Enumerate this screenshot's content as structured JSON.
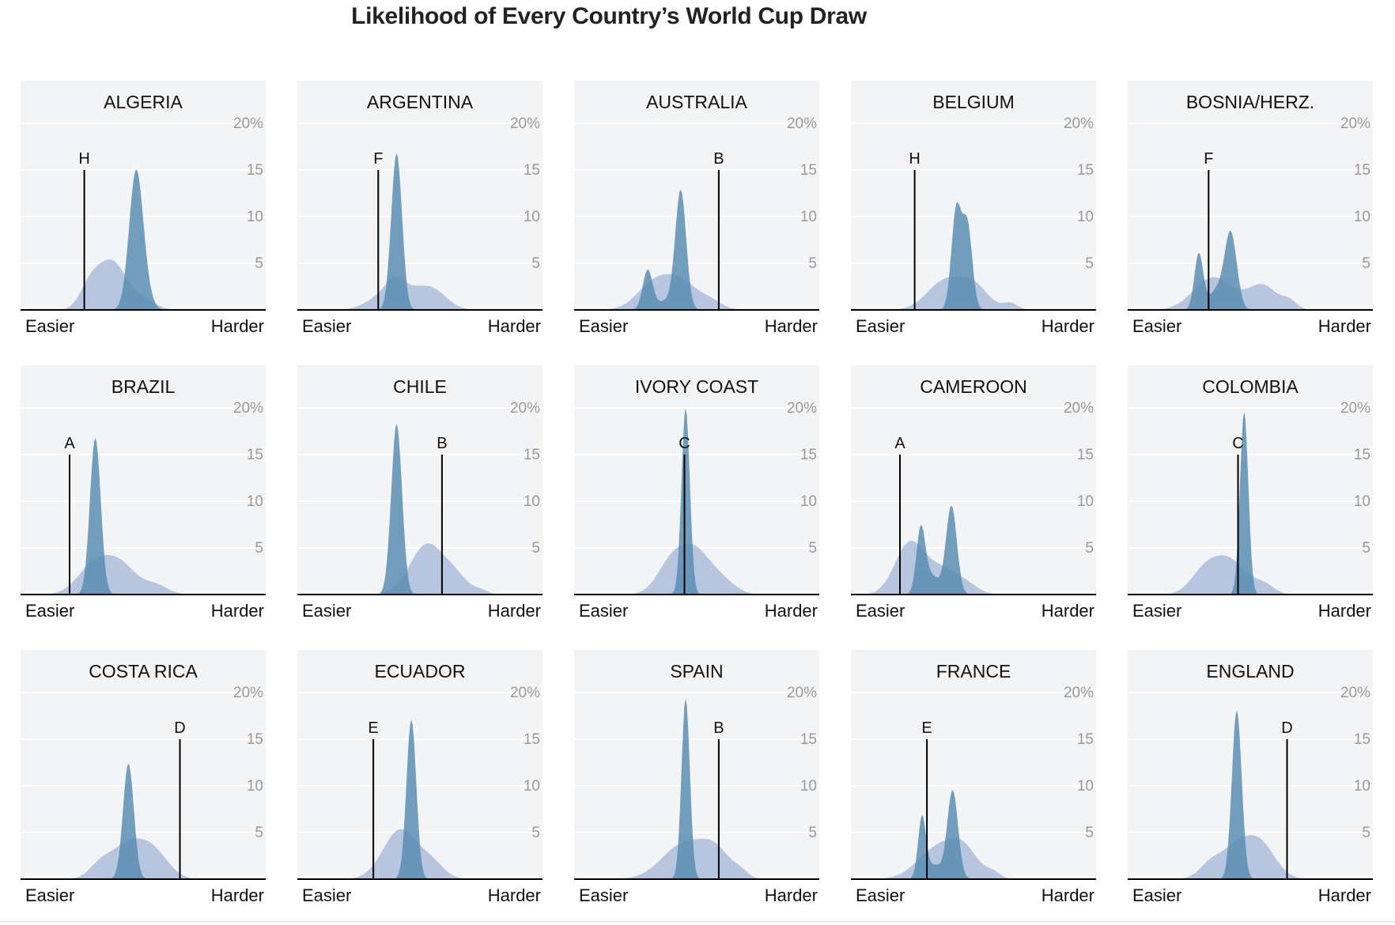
{
  "title": "Likelihood of Every Country’s World Cup Draw",
  "colors": {
    "panel_bg": "#f3f4f6",
    "grid": "#ffffff",
    "wide": "#b0c0dd",
    "narrow": "#5b8db3",
    "axis": "#000000",
    "tick_text": "#999999"
  },
  "chart_data": {
    "type": "area",
    "y_unit": "%",
    "ylim": [
      0,
      20
    ],
    "yticks": [
      "20%",
      "15",
      "10",
      "5"
    ],
    "x_labels": {
      "left": "Easier",
      "right": "Harder"
    },
    "panels": [
      {
        "country": "ALGERIA",
        "group": "H",
        "marker": 0.26,
        "wide": [
          [
            0.37,
            5.2,
            0.06
          ],
          [
            0.28,
            2.0,
            0.04
          ],
          [
            0.5,
            1.0,
            0.05
          ]
        ],
        "narrow": [
          [
            0.47,
            13.8,
            0.028
          ],
          [
            0.5,
            2.0,
            0.03
          ]
        ]
      },
      {
        "country": "ARGENTINA",
        "group": "F",
        "marker": 0.33,
        "wide": [
          [
            0.4,
            2.6,
            0.08
          ],
          [
            0.55,
            2.0,
            0.06
          ],
          [
            0.4,
            1.0,
            0.03
          ]
        ],
        "narrow": [
          [
            0.405,
            16.8,
            0.022
          ]
        ]
      },
      {
        "country": "AUSTRALIA",
        "group": "B",
        "marker": 0.59,
        "wide": [
          [
            0.33,
            3.0,
            0.07
          ],
          [
            0.44,
            2.5,
            0.06
          ],
          [
            0.55,
            1.0,
            0.05
          ]
        ],
        "narrow": [
          [
            0.3,
            4.2,
            0.02
          ],
          [
            0.435,
            12.5,
            0.022
          ],
          [
            0.38,
            1.0,
            0.04
          ]
        ]
      },
      {
        "country": "BELGIUM",
        "group": "H",
        "marker": 0.26,
        "wide": [
          [
            0.38,
            3.0,
            0.07
          ],
          [
            0.5,
            2.5,
            0.06
          ],
          [
            0.65,
            0.7,
            0.03
          ]
        ],
        "narrow": [
          [
            0.43,
            10.7,
            0.02
          ],
          [
            0.475,
            9.0,
            0.02
          ]
        ]
      },
      {
        "country": "BOSNIA/HERZ.",
        "group": "F",
        "marker": 0.33,
        "wide": [
          [
            0.35,
            3.5,
            0.08
          ],
          [
            0.55,
            2.6,
            0.06
          ],
          [
            0.66,
            0.8,
            0.03
          ]
        ],
        "narrow": [
          [
            0.29,
            6.0,
            0.018
          ],
          [
            0.42,
            8.2,
            0.025
          ],
          [
            0.36,
            2.0,
            0.03
          ]
        ]
      },
      {
        "country": "BRAZIL",
        "group": "A",
        "marker": 0.2,
        "wide": [
          [
            0.31,
            3.5,
            0.07
          ],
          [
            0.42,
            2.5,
            0.06
          ],
          [
            0.55,
            1.0,
            0.05
          ]
        ],
        "narrow": [
          [
            0.305,
            16.8,
            0.022
          ]
        ]
      },
      {
        "country": "CHILE",
        "group": "B",
        "marker": 0.59,
        "wide": [
          [
            0.53,
            5.4,
            0.07
          ],
          [
            0.65,
            1.5,
            0.05
          ],
          [
            0.75,
            0.4,
            0.03
          ]
        ],
        "narrow": [
          [
            0.405,
            18.3,
            0.022
          ]
        ]
      },
      {
        "country": "IVORY COAST",
        "group": "C",
        "marker": 0.45,
        "wide": [
          [
            0.48,
            5.2,
            0.08
          ],
          [
            0.38,
            1.5,
            0.05
          ],
          [
            0.62,
            0.7,
            0.05
          ]
        ],
        "narrow": [
          [
            0.455,
            20.0,
            0.017
          ]
        ]
      },
      {
        "country": "CAMEROON",
        "group": "A",
        "marker": 0.2,
        "wide": [
          [
            0.24,
            5.5,
            0.06
          ],
          [
            0.37,
            2.5,
            0.06
          ],
          [
            0.47,
            1.0,
            0.05
          ]
        ],
        "narrow": [
          [
            0.285,
            6.8,
            0.018
          ],
          [
            0.41,
            9.5,
            0.022
          ],
          [
            0.33,
            2.0,
            0.03
          ]
        ]
      },
      {
        "country": "COLOMBIA",
        "group": "C",
        "marker": 0.45,
        "wide": [
          [
            0.4,
            4.0,
            0.08
          ],
          [
            0.3,
            1.2,
            0.05
          ],
          [
            0.56,
            0.8,
            0.04
          ]
        ],
        "narrow": [
          [
            0.475,
            19.6,
            0.017
          ]
        ]
      },
      {
        "country": "COSTA RICA",
        "group": "D",
        "marker": 0.65,
        "wide": [
          [
            0.44,
            3.8,
            0.08
          ],
          [
            0.55,
            2.0,
            0.06
          ],
          [
            0.32,
            0.9,
            0.04
          ]
        ],
        "narrow": [
          [
            0.44,
            12.4,
            0.022
          ]
        ]
      },
      {
        "country": "ECUADOR",
        "group": "E",
        "marker": 0.31,
        "wide": [
          [
            0.42,
            5.3,
            0.07
          ],
          [
            0.55,
            1.5,
            0.05
          ]
        ],
        "narrow": [
          [
            0.465,
            17.1,
            0.02
          ]
        ]
      },
      {
        "country": "SPAIN",
        "group": "B",
        "marker": 0.59,
        "wide": [
          [
            0.45,
            3.8,
            0.09
          ],
          [
            0.58,
            2.5,
            0.06
          ],
          [
            0.68,
            0.6,
            0.03
          ]
        ],
        "narrow": [
          [
            0.455,
            19.4,
            0.017
          ]
        ]
      },
      {
        "country": "FRANCE",
        "group": "E",
        "marker": 0.31,
        "wide": [
          [
            0.35,
            3.2,
            0.08
          ],
          [
            0.46,
            2.8,
            0.06
          ],
          [
            0.58,
            0.6,
            0.03
          ]
        ],
        "narrow": [
          [
            0.29,
            6.5,
            0.016
          ],
          [
            0.415,
            9.5,
            0.022
          ],
          [
            0.34,
            1.5,
            0.03
          ]
        ]
      },
      {
        "country": "ENGLAND",
        "group": "D",
        "marker": 0.65,
        "wide": [
          [
            0.45,
            3.6,
            0.08
          ],
          [
            0.55,
            2.5,
            0.06
          ],
          [
            0.33,
            0.9,
            0.04
          ]
        ],
        "narrow": [
          [
            0.445,
            18.1,
            0.02
          ]
        ]
      }
    ]
  }
}
